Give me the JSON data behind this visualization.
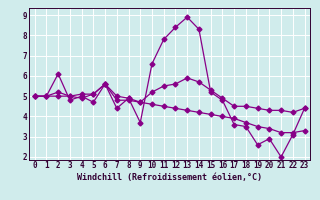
{
  "xlabel": "Windchill (Refroidissement éolien,°C)",
  "x": [
    0,
    1,
    2,
    3,
    4,
    5,
    6,
    7,
    8,
    9,
    10,
    11,
    12,
    13,
    14,
    15,
    16,
    17,
    18,
    19,
    20,
    21,
    22,
    23
  ],
  "series1": [
    5.0,
    5.0,
    6.1,
    4.8,
    5.0,
    4.7,
    5.6,
    4.4,
    4.9,
    3.7,
    6.6,
    7.8,
    8.4,
    8.9,
    8.3,
    5.2,
    4.8,
    3.6,
    3.5,
    2.6,
    2.9,
    2.0,
    3.1,
    4.4
  ],
  "series2": [
    5.0,
    5.0,
    5.2,
    5.0,
    4.9,
    5.1,
    5.6,
    4.8,
    4.8,
    4.7,
    5.2,
    5.5,
    5.6,
    5.9,
    5.7,
    5.3,
    4.9,
    4.5,
    4.5,
    4.4,
    4.3,
    4.3,
    4.2,
    4.4
  ],
  "series3": [
    5.0,
    5.0,
    5.0,
    5.0,
    5.1,
    5.1,
    5.6,
    5.0,
    4.9,
    4.7,
    4.6,
    4.5,
    4.4,
    4.3,
    4.2,
    4.1,
    4.0,
    3.9,
    3.7,
    3.5,
    3.4,
    3.2,
    3.2,
    3.3
  ],
  "color": "#880088",
  "bg_color": "#d0ecec",
  "ylim": [
    2,
    9
  ],
  "xlim": [
    0,
    23
  ],
  "yticks": [
    2,
    3,
    4,
    5,
    6,
    7,
    8,
    9
  ],
  "xticks": [
    0,
    1,
    2,
    3,
    4,
    5,
    6,
    7,
    8,
    9,
    10,
    11,
    12,
    13,
    14,
    15,
    16,
    17,
    18,
    19,
    20,
    21,
    22,
    23
  ],
  "grid_color": "#ffffff",
  "marker": "D",
  "markersize": 2.5,
  "linewidth": 0.9,
  "xlabel_fontsize": 6.0,
  "tick_fontsize": 5.5
}
